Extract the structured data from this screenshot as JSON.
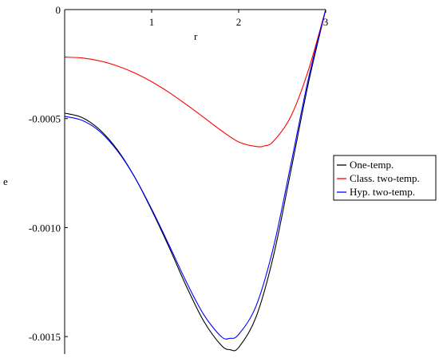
{
  "chart_data": {
    "type": "line",
    "title": "",
    "xlabel": "r",
    "ylabel": "e",
    "xlim": [
      0,
      3
    ],
    "ylim": [
      -0.00158,
      0
    ],
    "xticks": [
      1,
      2,
      3
    ],
    "xtick_labels": [
      "1",
      "2",
      "3"
    ],
    "yticks": [
      0,
      -0.0005,
      -0.001,
      -0.0015
    ],
    "ytick_labels": [
      "0",
      "-0.0005",
      "-0.0010",
      "-0.0015"
    ],
    "grid": false,
    "legend_position": "right",
    "series": [
      {
        "name": "One-temp.",
        "color": "#000000",
        "x": [
          0,
          0.2,
          0.4,
          0.6,
          0.8,
          1.0,
          1.2,
          1.4,
          1.6,
          1.8,
          1.9,
          2.0,
          2.2,
          2.4,
          2.6,
          2.8,
          3.0
        ],
        "y": [
          -0.000475,
          -0.000495,
          -0.00055,
          -0.00064,
          -0.000765,
          -0.00092,
          -0.00109,
          -0.00127,
          -0.00143,
          -0.00154,
          -0.00156,
          -0.00155,
          -0.00141,
          -0.00113,
          -0.00074,
          -0.00034,
          0
        ]
      },
      {
        "name": "Class. two-temp.",
        "color": "#ff0000",
        "x": [
          0,
          0.2,
          0.4,
          0.6,
          0.8,
          1.0,
          1.2,
          1.4,
          1.6,
          1.8,
          2.0,
          2.2,
          2.3,
          2.4,
          2.6,
          2.8,
          3.0
        ],
        "y": [
          -0.000218,
          -0.000222,
          -0.000235,
          -0.000258,
          -0.00029,
          -0.000331,
          -0.00038,
          -0.000436,
          -0.000495,
          -0.000555,
          -0.000607,
          -0.000628,
          -0.000625,
          -0.000604,
          -0.00049,
          -0.00028,
          0
        ]
      },
      {
        "name": "Hyp. two-temp.",
        "color": "#0000ff",
        "x": [
          0,
          0.2,
          0.4,
          0.6,
          0.8,
          1.0,
          1.2,
          1.4,
          1.6,
          1.8,
          1.9,
          2.0,
          2.2,
          2.4,
          2.6,
          2.8,
          3.0
        ],
        "y": [
          -0.00049,
          -0.000508,
          -0.000558,
          -0.000645,
          -0.000765,
          -0.000915,
          -0.00108,
          -0.00125,
          -0.0014,
          -0.0015,
          -0.001508,
          -0.00149,
          -0.00136,
          -0.00109,
          -0.00071,
          -0.00032,
          0
        ]
      }
    ]
  }
}
